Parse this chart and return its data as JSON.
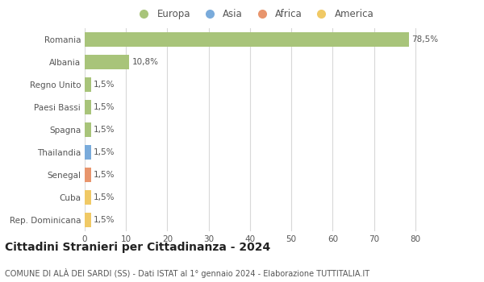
{
  "categories": [
    "Rep. Dominicana",
    "Cuba",
    "Senegal",
    "Thailandia",
    "Spagna",
    "Paesi Bassi",
    "Regno Unito",
    "Albania",
    "Romania"
  ],
  "values": [
    1.5,
    1.5,
    1.5,
    1.5,
    1.5,
    1.5,
    1.5,
    10.8,
    78.5
  ],
  "bar_colors": [
    "#f0c965",
    "#f0c965",
    "#e8956d",
    "#7aabdb",
    "#a8c47a",
    "#a8c47a",
    "#a8c47a",
    "#a8c47a",
    "#a8c47a"
  ],
  "labels": [
    "1,5%",
    "1,5%",
    "1,5%",
    "1,5%",
    "1,5%",
    "1,5%",
    "1,5%",
    "10,8%",
    "78,5%"
  ],
  "xlim": [
    0,
    82
  ],
  "xticks": [
    0,
    10,
    20,
    30,
    40,
    50,
    60,
    70,
    80
  ],
  "legend_items": [
    {
      "label": "Europa",
      "color": "#a8c47a"
    },
    {
      "label": "Asia",
      "color": "#7aabdb"
    },
    {
      "label": "Africa",
      "color": "#e8956d"
    },
    {
      "label": "America",
      "color": "#f0c965"
    }
  ],
  "title": "Cittadini Stranieri per Cittadinanza - 2024",
  "subtitle": "COMUNE DI ALÀ DEI SARDI (SS) - Dati ISTAT al 1° gennaio 2024 - Elaborazione TUTTITALIA.IT",
  "background_color": "#ffffff",
  "grid_color": "#d8d8d8",
  "bar_height": 0.65,
  "label_fontsize": 7.5,
  "tick_fontsize": 7.5,
  "title_fontsize": 10,
  "subtitle_fontsize": 7
}
